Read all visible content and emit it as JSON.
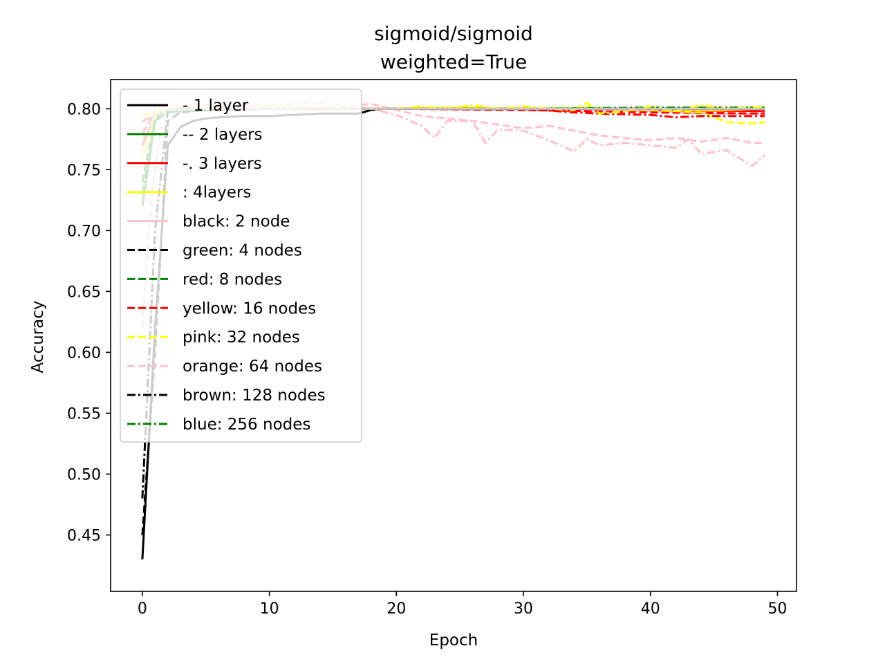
{
  "chart_data": {
    "type": "line",
    "title_line1": "sigmoid/sigmoid",
    "title_line2": "weighted=True",
    "xlabel": "Epoch",
    "ylabel": "Accuracy",
    "xlim": [
      -2.5,
      51.5
    ],
    "ylim": [
      0.4037,
      0.824
    ],
    "xticks": [
      0,
      10,
      20,
      30,
      40,
      50
    ],
    "xtick_labels": [
      "0",
      "10",
      "20",
      "30",
      "40",
      "50"
    ],
    "yticks": [
      0.45,
      0.5,
      0.55,
      0.6,
      0.65,
      0.7,
      0.75,
      0.8
    ],
    "ytick_labels": [
      "0.45",
      "0.50",
      "0.55",
      "0.60",
      "0.65",
      "0.70",
      "0.75",
      "0.80"
    ],
    "grid": false,
    "legend_position": "top-left",
    "legend": [
      {
        "label": "- 1 layer",
        "color": "#000000",
        "dash": "solid"
      },
      {
        "label": "-- 2 layers",
        "color": "#008000",
        "dash": "solid"
      },
      {
        "label": "-. 3 layers",
        "color": "#ff0000",
        "dash": "solid"
      },
      {
        "label": ": 4layers",
        "color": "#ffff00",
        "dash": "solid"
      },
      {
        "label": "black: 2 node",
        "color": "#ffc0cb",
        "dash": "solid"
      },
      {
        "label": "green: 4 nodes",
        "color": "#000000",
        "dash": "dashed"
      },
      {
        "label": "red: 8 nodes",
        "color": "#008000",
        "dash": "dashed"
      },
      {
        "label": "yellow: 16 nodes",
        "color": "#ff0000",
        "dash": "dashed"
      },
      {
        "label": "pink: 32 nodes",
        "color": "#ffff00",
        "dash": "dashed"
      },
      {
        "label": "orange: 64 nodes",
        "color": "#ffc0cb",
        "dash": "dashed"
      },
      {
        "label": "brown: 128 nodes",
        "color": "#000000",
        "dash": "dashdot"
      },
      {
        "label": "blue: 256 nodes",
        "color": "#008000",
        "dash": "dashdot"
      }
    ],
    "series": [
      {
        "color": "#000000",
        "dash": "solid",
        "x": [
          0,
          1,
          2,
          3,
          4,
          5,
          6,
          8,
          10,
          12,
          14,
          16,
          17,
          18,
          19,
          20,
          25,
          30,
          35,
          40,
          45,
          49
        ],
        "y": [
          0.43,
          0.62,
          0.77,
          0.785,
          0.79,
          0.792,
          0.793,
          0.794,
          0.794,
          0.795,
          0.796,
          0.796,
          0.796,
          0.799,
          0.8,
          0.8,
          0.8,
          0.8,
          0.8,
          0.8,
          0.8,
          0.8
        ]
      },
      {
        "color": "#008000",
        "dash": "solid",
        "x": [
          0,
          1,
          2,
          5,
          10,
          20,
          30,
          40,
          49
        ],
        "y": [
          0.72,
          0.79,
          0.797,
          0.799,
          0.8,
          0.8,
          0.8,
          0.8,
          0.8
        ]
      },
      {
        "color": "#ff0000",
        "dash": "solid",
        "x": [
          0,
          1,
          2,
          5,
          10,
          20,
          30,
          40,
          49
        ],
        "y": [
          0.77,
          0.795,
          0.798,
          0.8,
          0.8,
          0.8,
          0.8,
          0.799,
          0.798
        ]
      },
      {
        "color": "#ffff00",
        "dash": "solid",
        "x": [
          0,
          1,
          2,
          5,
          10,
          20,
          25,
          30,
          35,
          40,
          45,
          49
        ],
        "y": [
          0.76,
          0.793,
          0.798,
          0.8,
          0.8,
          0.8,
          0.801,
          0.8,
          0.8,
          0.8,
          0.799,
          0.8
        ]
      },
      {
        "color": "#ffc0cb",
        "dash": "solid",
        "x": [
          0,
          1,
          2,
          5,
          10,
          20,
          30,
          40,
          45,
          49
        ],
        "y": [
          0.775,
          0.795,
          0.799,
          0.8,
          0.8,
          0.8,
          0.799,
          0.798,
          0.796,
          0.796
        ]
      },
      {
        "color": "#000000",
        "dash": "dashed",
        "x": [
          0,
          1,
          2,
          3,
          5,
          10,
          20,
          30,
          40,
          49
        ],
        "y": [
          0.45,
          0.6,
          0.79,
          0.797,
          0.799,
          0.8,
          0.8,
          0.8,
          0.8,
          0.8
        ]
      },
      {
        "color": "#008000",
        "dash": "dashed",
        "x": [
          0,
          1,
          2,
          5,
          10,
          20,
          30,
          40,
          49
        ],
        "y": [
          0.74,
          0.792,
          0.798,
          0.8,
          0.8,
          0.8,
          0.8,
          0.8,
          0.8
        ]
      },
      {
        "color": "#ff0000",
        "dash": "dashed",
        "x": [
          0,
          1,
          2,
          5,
          10,
          20,
          30,
          40,
          49
        ],
        "y": [
          0.78,
          0.797,
          0.799,
          0.8,
          0.8,
          0.8,
          0.799,
          0.797,
          0.796
        ]
      },
      {
        "color": "#ffff00",
        "dash": "dashed",
        "x": [
          0,
          2,
          5,
          10,
          20,
          25,
          30,
          35,
          40,
          44,
          46,
          48,
          49
        ],
        "y": [
          0.795,
          0.799,
          0.8,
          0.8,
          0.8,
          0.801,
          0.8,
          0.801,
          0.799,
          0.797,
          0.789,
          0.788,
          0.789
        ]
      },
      {
        "color": "#ffc0cb",
        "dash": "dashed",
        "x": [
          0,
          2,
          5,
          10,
          15,
          18,
          20,
          22,
          24,
          26,
          28,
          30,
          32,
          34,
          36,
          38,
          40,
          42,
          44,
          46,
          48,
          49
        ],
        "y": [
          0.79,
          0.8,
          0.801,
          0.802,
          0.801,
          0.804,
          0.799,
          0.794,
          0.792,
          0.79,
          0.787,
          0.784,
          0.786,
          0.782,
          0.778,
          0.776,
          0.774,
          0.776,
          0.773,
          0.776,
          0.772,
          0.772
        ]
      },
      {
        "color": "#000000",
        "dash": "dashdot",
        "x": [
          0,
          1,
          2,
          3,
          5,
          10,
          20,
          30,
          40,
          49
        ],
        "y": [
          0.48,
          0.7,
          0.799,
          0.8,
          0.8,
          0.8,
          0.8,
          0.8,
          0.8,
          0.8
        ]
      },
      {
        "color": "#008000",
        "dash": "dashdot",
        "x": [
          0,
          1,
          2,
          5,
          10,
          20,
          30,
          40,
          49
        ],
        "y": [
          0.73,
          0.79,
          0.797,
          0.8,
          0.8,
          0.8,
          0.8,
          0.801,
          0.801
        ]
      },
      {
        "color": "#ff0000",
        "dash": "dashdot",
        "x": [
          0,
          2,
          5,
          10,
          20,
          25,
          30,
          34,
          36,
          40,
          42,
          44,
          46,
          49
        ],
        "y": [
          0.79,
          0.799,
          0.8,
          0.8,
          0.8,
          0.8,
          0.8,
          0.797,
          0.796,
          0.795,
          0.793,
          0.794,
          0.794,
          0.794
        ]
      },
      {
        "color": "#ffff00",
        "dash": "dashdot",
        "x": [
          0,
          2,
          5,
          10,
          20,
          22,
          24,
          26,
          28,
          30,
          32,
          34,
          35,
          36,
          38,
          40,
          42,
          44,
          46,
          48,
          49
        ],
        "y": [
          0.795,
          0.799,
          0.8,
          0.801,
          0.8,
          0.802,
          0.8,
          0.803,
          0.8,
          0.802,
          0.8,
          0.799,
          0.805,
          0.796,
          0.798,
          0.802,
          0.798,
          0.803,
          0.8,
          0.801,
          0.802
        ]
      },
      {
        "color": "#ffc0cb",
        "dash": "dashdot",
        "x": [
          0,
          2,
          5,
          10,
          14,
          18,
          20,
          22,
          23,
          24,
          26,
          27,
          28,
          30,
          32,
          34,
          35,
          36,
          38,
          40,
          42,
          43,
          44,
          46,
          48,
          49
        ],
        "y": [
          0.8,
          0.801,
          0.802,
          0.803,
          0.805,
          0.8,
          0.795,
          0.786,
          0.776,
          0.79,
          0.79,
          0.772,
          0.783,
          0.782,
          0.774,
          0.765,
          0.775,
          0.77,
          0.772,
          0.77,
          0.768,
          0.775,
          0.763,
          0.766,
          0.753,
          0.762
        ]
      },
      {
        "color": "#c8c8c8",
        "dash": "solid",
        "x": [
          0,
          1,
          2,
          5,
          10,
          20,
          30,
          40,
          49
        ],
        "y": [
          0.775,
          0.795,
          0.799,
          0.8,
          0.8,
          0.8,
          0.8,
          0.8,
          0.8
        ]
      },
      {
        "color": "#c8c8c8",
        "dash": "dashed",
        "x": [
          0,
          0.5,
          1,
          1.5,
          2,
          3
        ],
        "y": [
          0.62,
          0.7,
          0.75,
          0.79,
          0.799,
          0.8
        ]
      }
    ]
  }
}
